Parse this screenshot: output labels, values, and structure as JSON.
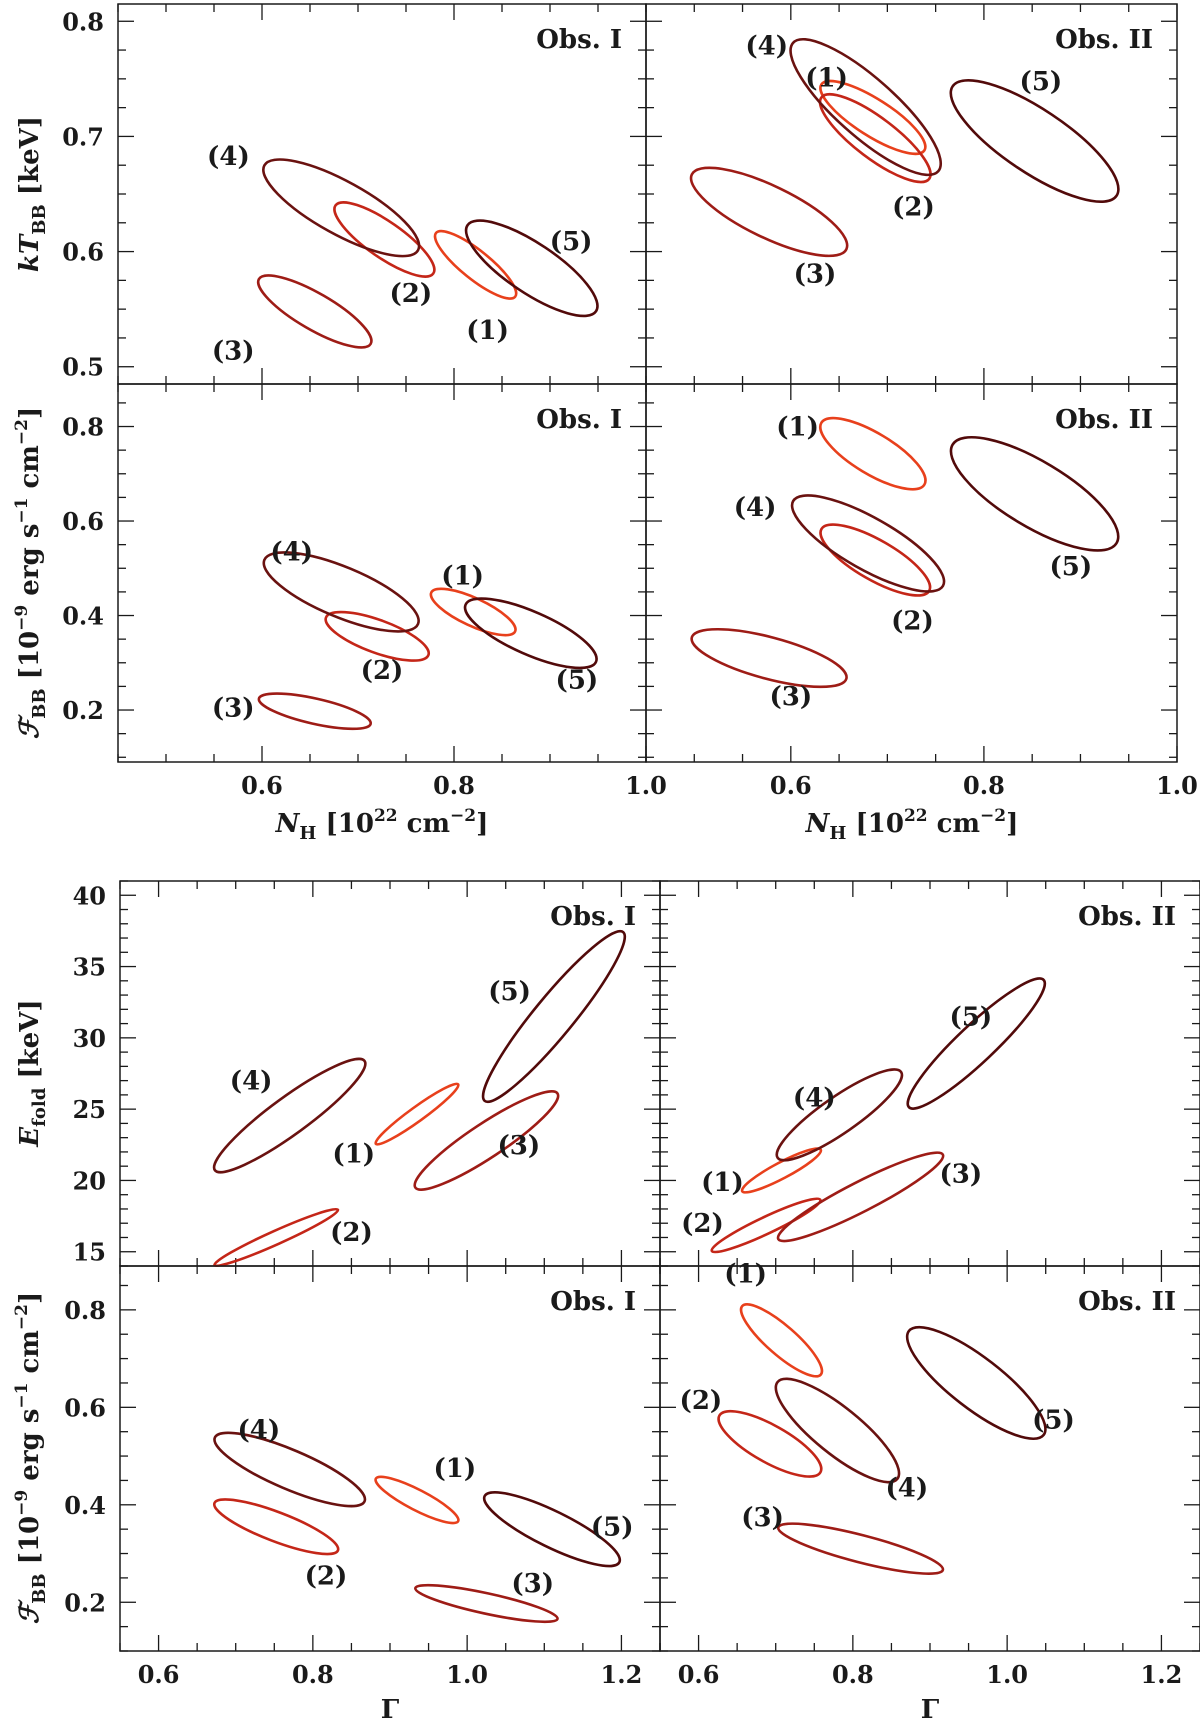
{
  "figure": {
    "colors": {
      "1": "#e8401c",
      "2": "#c42618",
      "3": "#9e1c16",
      "4": "#6a1210",
      "5": "#520a0a"
    }
  },
  "chart_data": [
    {
      "type": "scatter",
      "title": "Obs. I",
      "panel": "top-left",
      "xlabel": "N_H [10^22 cm^-2]",
      "ylabel": "kT_BB [keV]",
      "xlim": [
        0.45,
        1.0
      ],
      "ylim": [
        0.485,
        0.815
      ],
      "yticks": [
        "0.5",
        "0.6",
        "0.7",
        "0.8"
      ],
      "series": [
        {
          "name": "(1)",
          "shape": "confidence-ellipse",
          "x": [
            0.78,
            0.865
          ],
          "y": [
            0.56,
            0.617
          ]
        },
        {
          "name": "(2)",
          "shape": "confidence-ellipse",
          "x": [
            0.675,
            0.78
          ],
          "y": [
            0.58,
            0.641
          ]
        },
        {
          "name": "(3)",
          "shape": "confidence-ellipse",
          "x": [
            0.595,
            0.715
          ],
          "y": [
            0.519,
            0.577
          ]
        },
        {
          "name": "(4)",
          "shape": "confidence-ellipse",
          "x": [
            0.6,
            0.765
          ],
          "y": [
            0.6,
            0.676
          ]
        },
        {
          "name": "(5)",
          "shape": "confidence-ellipse",
          "x": [
            0.812,
            0.95
          ],
          "y": [
            0.547,
            0.624
          ]
        }
      ]
    },
    {
      "type": "scatter",
      "title": "Obs. II",
      "panel": "top-right",
      "xlabel": "N_H [10^22 cm^-2]",
      "ylabel": "kT_BB [keV]",
      "xlim": [
        0.45,
        1.0
      ],
      "ylim": [
        0.485,
        0.815
      ],
      "series": [
        {
          "name": "(1)",
          "shape": "confidence-ellipse",
          "x": [
            0.63,
            0.74
          ],
          "y": [
            0.687,
            0.746
          ]
        },
        {
          "name": "(2)",
          "shape": "confidence-ellipse",
          "x": [
            0.63,
            0.745
          ],
          "y": [
            0.662,
            0.735
          ]
        },
        {
          "name": "(3)",
          "shape": "confidence-ellipse",
          "x": [
            0.495,
            0.66
          ],
          "y": [
            0.601,
            0.668
          ]
        },
        {
          "name": "(4)",
          "shape": "confidence-ellipse",
          "x": [
            0.6,
            0.755
          ],
          "y": [
            0.668,
            0.783
          ]
        },
        {
          "name": "(5)",
          "shape": "confidence-ellipse",
          "x": [
            0.765,
            0.94
          ],
          "y": [
            0.647,
            0.745
          ]
        }
      ]
    },
    {
      "type": "scatter",
      "title": "Obs. I",
      "panel": "middle-left",
      "xlabel": "N_H [10^22 cm^-2]",
      "ylabel": "F_BB [10^-9 erg s^-1 cm^-2]",
      "xlim": [
        0.45,
        1.0
      ],
      "ylim": [
        0.09,
        0.89
      ],
      "xticks": [
        "0.6",
        "0.8",
        "1.0"
      ],
      "yticks": [
        "0.2",
        "0.4",
        "0.6",
        "0.8"
      ],
      "series": [
        {
          "name": "(1)",
          "shape": "confidence-ellipse",
          "x": [
            0.775,
            0.865
          ],
          "y": [
            0.365,
            0.45
          ]
        },
        {
          "name": "(2)",
          "shape": "confidence-ellipse",
          "x": [
            0.665,
            0.775
          ],
          "y": [
            0.315,
            0.397
          ]
        },
        {
          "name": "(3)",
          "shape": "confidence-ellipse",
          "x": [
            0.595,
            0.715
          ],
          "y": [
            0.17,
            0.225
          ]
        },
        {
          "name": "(4)",
          "shape": "confidence-ellipse",
          "x": [
            0.6,
            0.765
          ],
          "y": [
            0.38,
            0.52
          ]
        },
        {
          "name": "(5)",
          "shape": "confidence-ellipse",
          "x": [
            0.81,
            0.95
          ],
          "y": [
            0.3,
            0.425
          ]
        }
      ]
    },
    {
      "type": "scatter",
      "title": "Obs. II",
      "panel": "middle-right",
      "xlabel": "N_H [10^22 cm^-2]",
      "ylabel": "F_BB [10^-9 erg s^-1 cm^-2]",
      "xlim": [
        0.45,
        1.0
      ],
      "ylim": [
        0.09,
        0.89
      ],
      "xticks": [
        "0.6",
        "0.8",
        "1.0"
      ],
      "series": [
        {
          "name": "(1)",
          "shape": "confidence-ellipse",
          "x": [
            0.63,
            0.74
          ],
          "y": [
            0.675,
            0.81
          ]
        },
        {
          "name": "(2)",
          "shape": "confidence-ellipse",
          "x": [
            0.63,
            0.745
          ],
          "y": [
            0.45,
            0.585
          ]
        },
        {
          "name": "(3)",
          "shape": "confidence-ellipse",
          "x": [
            0.495,
            0.66
          ],
          "y": [
            0.265,
            0.355
          ]
        },
        {
          "name": "(4)",
          "shape": "confidence-ellipse",
          "x": [
            0.6,
            0.76
          ],
          "y": [
            0.46,
            0.645
          ]
        },
        {
          "name": "(5)",
          "shape": "confidence-ellipse",
          "x": [
            0.765,
            0.94
          ],
          "y": [
            0.55,
            0.765
          ]
        }
      ]
    },
    {
      "type": "scatter",
      "title": "Obs. I",
      "panel": "lower-left",
      "xlabel": "Γ",
      "ylabel": "E_fold [keV]",
      "xlim": [
        0.55,
        1.25
      ],
      "ylim": [
        14.0,
        41.0
      ],
      "yticks": [
        "15",
        "20",
        "25",
        "30",
        "35",
        "40"
      ],
      "series": [
        {
          "name": "(1)",
          "shape": "confidence-ellipse",
          "x": [
            0.88,
            0.99
          ],
          "y": [
            22.5,
            26.8
          ]
        },
        {
          "name": "(2)",
          "shape": "confidence-ellipse",
          "x": [
            0.67,
            0.835
          ],
          "y": [
            14.0,
            18.0
          ]
        },
        {
          "name": "(3)",
          "shape": "confidence-ellipse",
          "x": [
            0.93,
            1.12
          ],
          "y": [
            19.4,
            26.2
          ]
        },
        {
          "name": "(4)",
          "shape": "confidence-ellipse",
          "x": [
            0.67,
            0.87
          ],
          "y": [
            20.6,
            28.5
          ]
        },
        {
          "name": "(5)",
          "shape": "confidence-ellipse",
          "x": [
            1.02,
            1.205
          ],
          "y": [
            25.4,
            37.6
          ]
        }
      ]
    },
    {
      "type": "scatter",
      "title": "Obs. II",
      "panel": "lower-right",
      "xlabel": "Γ",
      "ylabel": "E_fold [keV]",
      "xlim": [
        0.55,
        1.25
      ],
      "ylim": [
        14.0,
        41.0
      ],
      "series": [
        {
          "name": "(1)",
          "shape": "confidence-ellipse",
          "x": [
            0.655,
            0.76
          ],
          "y": [
            19.2,
            22.2
          ]
        },
        {
          "name": "(2)",
          "shape": "confidence-ellipse",
          "x": [
            0.615,
            0.76
          ],
          "y": [
            15.0,
            18.7
          ]
        },
        {
          "name": "(3)",
          "shape": "confidence-ellipse",
          "x": [
            0.7,
            0.92
          ],
          "y": [
            15.8,
            21.9
          ]
        },
        {
          "name": "(4)",
          "shape": "confidence-ellipse",
          "x": [
            0.7,
            0.865
          ],
          "y": [
            21.5,
            27.7
          ]
        },
        {
          "name": "(5)",
          "shape": "confidence-ellipse",
          "x": [
            0.87,
            1.05
          ],
          "y": [
            25.0,
            34.2
          ]
        }
      ]
    },
    {
      "type": "scatter",
      "title": "Obs. I",
      "panel": "bottom-left",
      "xlabel": "Γ",
      "ylabel": "F_BB [10^-9 erg s^-1 cm^-2]",
      "xlim": [
        0.55,
        1.25
      ],
      "ylim": [
        0.1,
        0.89
      ],
      "xticks": [
        "0.6",
        "0.8",
        "1.0",
        "1.2"
      ],
      "yticks": [
        "0.2",
        "0.4",
        "0.6",
        "0.8"
      ],
      "series": [
        {
          "name": "(1)",
          "shape": "confidence-ellipse",
          "x": [
            0.88,
            0.99
          ],
          "y": [
            0.365,
            0.455
          ]
        },
        {
          "name": "(2)",
          "shape": "confidence-ellipse",
          "x": [
            0.67,
            0.835
          ],
          "y": [
            0.305,
            0.405
          ]
        },
        {
          "name": "(3)",
          "shape": "confidence-ellipse",
          "x": [
            0.93,
            1.12
          ],
          "y": [
            0.165,
            0.23
          ]
        },
        {
          "name": "(4)",
          "shape": "confidence-ellipse",
          "x": [
            0.67,
            0.87
          ],
          "y": [
            0.405,
            0.54
          ]
        },
        {
          "name": "(5)",
          "shape": "confidence-ellipse",
          "x": [
            1.02,
            1.2
          ],
          "y": [
            0.28,
            0.42
          ]
        }
      ]
    },
    {
      "type": "scatter",
      "title": "Obs. II",
      "panel": "bottom-right",
      "xlabel": "Γ",
      "ylabel": "F_BB [10^-9 erg s^-1 cm^-2]",
      "xlim": [
        0.55,
        1.25
      ],
      "ylim": [
        0.1,
        0.89
      ],
      "xticks": [
        "0.6",
        "0.8",
        "1.0",
        "1.2"
      ],
      "series": [
        {
          "name": "(1)",
          "shape": "confidence-ellipse",
          "x": [
            0.655,
            0.76
          ],
          "y": [
            0.665,
            0.81
          ]
        },
        {
          "name": "(2)",
          "shape": "confidence-ellipse",
          "x": [
            0.625,
            0.76
          ],
          "y": [
            0.465,
            0.585
          ]
        },
        {
          "name": "(3)",
          "shape": "confidence-ellipse",
          "x": [
            0.7,
            0.92
          ],
          "y": [
            0.265,
            0.355
          ]
        },
        {
          "name": "(4)",
          "shape": "confidence-ellipse",
          "x": [
            0.7,
            0.86
          ],
          "y": [
            0.45,
            0.655
          ]
        },
        {
          "name": "(5)",
          "shape": "confidence-ellipse",
          "x": [
            0.87,
            1.05
          ],
          "y": [
            0.54,
            0.76
          ]
        }
      ]
    }
  ]
}
